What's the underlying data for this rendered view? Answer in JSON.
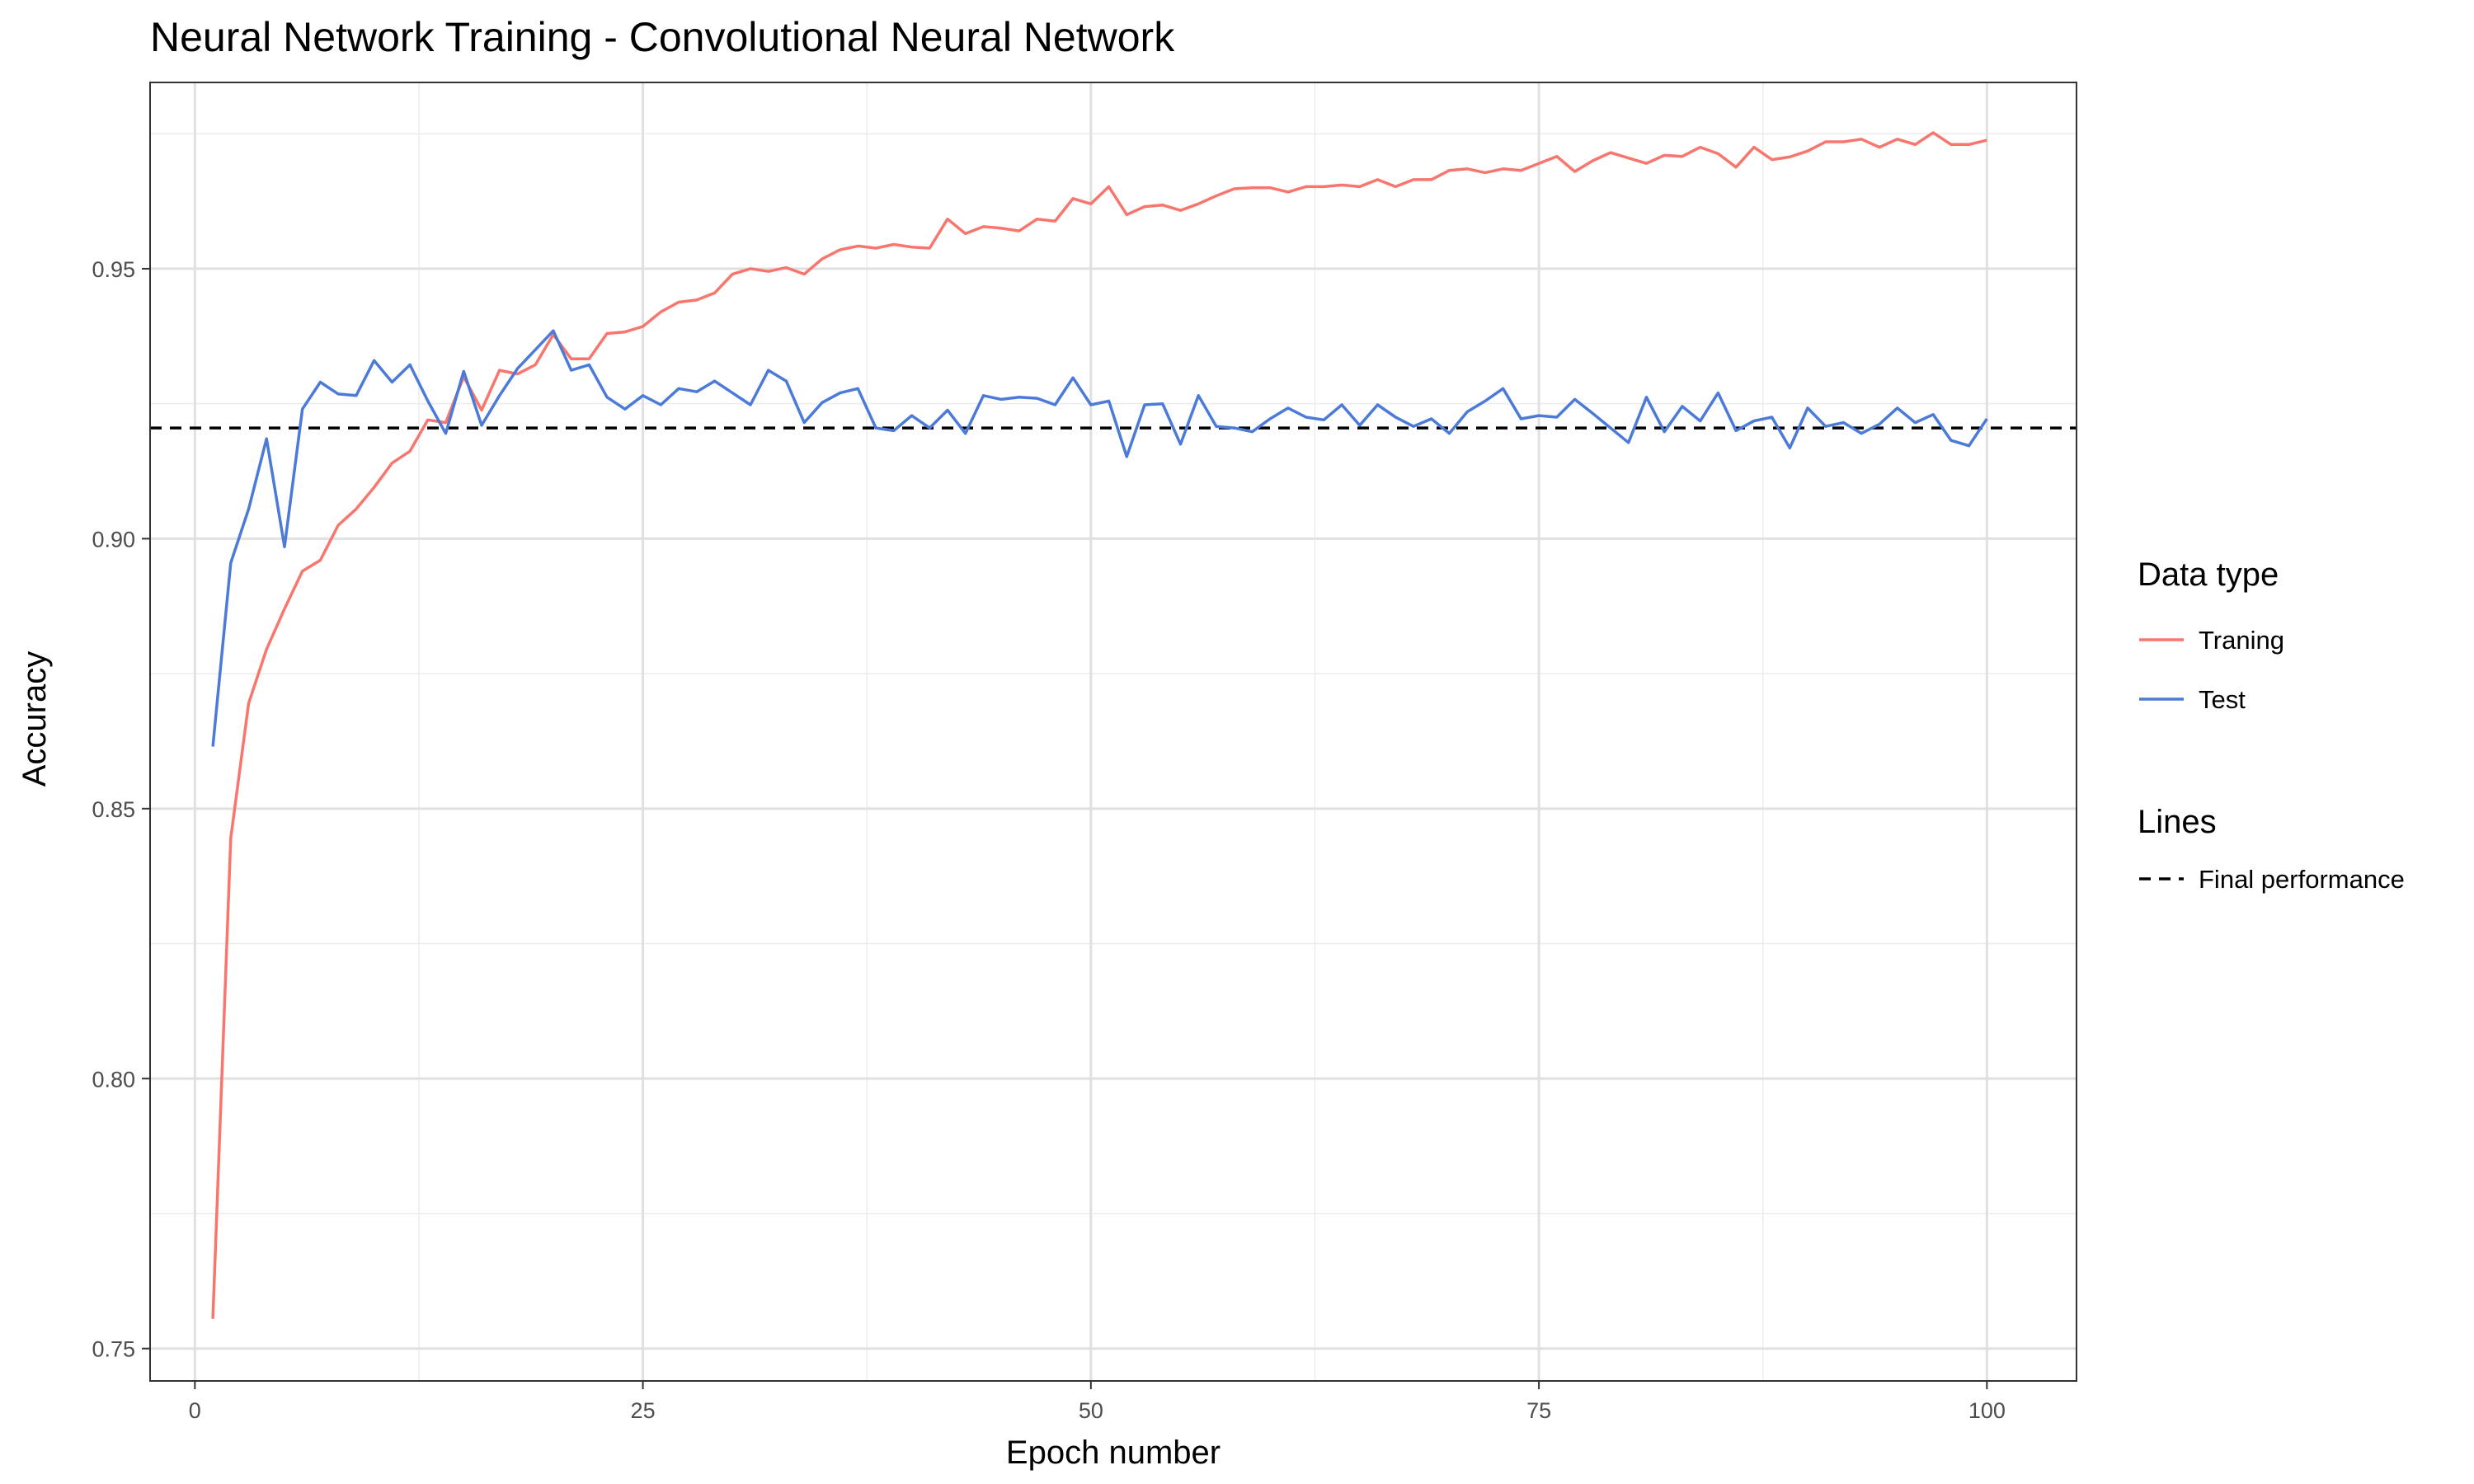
{
  "chart_data": {
    "type": "line",
    "title": "Neural Network Training - Convolutional Neural Network",
    "xlabel": "Epoch number",
    "ylabel": "Accuracy",
    "xlim": [
      -2.5,
      105
    ],
    "ylim": [
      0.744,
      0.9845
    ],
    "x_ticks": [
      0,
      25,
      50,
      75,
      100
    ],
    "x_tick_labels": [
      "0",
      "25",
      "50",
      "75",
      "100"
    ],
    "y_ticks": [
      0.75,
      0.8,
      0.85,
      0.9,
      0.95
    ],
    "y_tick_labels": [
      "0.75",
      "0.80",
      "0.85",
      "0.90",
      "0.95"
    ],
    "grid": true,
    "legend_position": "right",
    "legend_groups": [
      {
        "title": "Data type",
        "entries": [
          "Traning",
          "Test"
        ]
      },
      {
        "title": "Lines",
        "entries": [
          "Final performance"
        ]
      }
    ],
    "series": [
      {
        "name": "Traning",
        "color": "#f8766d",
        "x": [
          1,
          2,
          3,
          4,
          5,
          6,
          7,
          8,
          9,
          10,
          11,
          12,
          13,
          14,
          15,
          16,
          17,
          18,
          19,
          20,
          21,
          22,
          23,
          24,
          25,
          26,
          27,
          28,
          29,
          30,
          31,
          32,
          33,
          34,
          35,
          36,
          37,
          38,
          39,
          40,
          41,
          42,
          43,
          44,
          45,
          46,
          47,
          48,
          49,
          50,
          51,
          52,
          53,
          54,
          55,
          56,
          57,
          58,
          59,
          60,
          61,
          62,
          63,
          64,
          65,
          66,
          67,
          68,
          69,
          70,
          71,
          72,
          73,
          74,
          75,
          76,
          77,
          78,
          79,
          80,
          81,
          82,
          83,
          84,
          85,
          86,
          87,
          88,
          89,
          90,
          91,
          92,
          93,
          94,
          95,
          96,
          97,
          98,
          99,
          100
        ],
        "y": [
          0.7555,
          0.8445,
          0.8695,
          0.8795,
          0.887,
          0.894,
          0.896,
          0.9025,
          0.9055,
          0.9095,
          0.914,
          0.9162,
          0.922,
          0.9215,
          0.93,
          0.9238,
          0.9312,
          0.9305,
          0.9322,
          0.9378,
          0.9333,
          0.9333,
          0.938,
          0.9383,
          0.9393,
          0.942,
          0.9438,
          0.9442,
          0.9455,
          0.949,
          0.95,
          0.9495,
          0.9502,
          0.949,
          0.9518,
          0.9535,
          0.9542,
          0.9538,
          0.9545,
          0.954,
          0.9538,
          0.9592,
          0.9565,
          0.9578,
          0.9575,
          0.957,
          0.9592,
          0.9588,
          0.963,
          0.962,
          0.9652,
          0.96,
          0.9615,
          0.9618,
          0.9608,
          0.962,
          0.9635,
          0.9648,
          0.965,
          0.965,
          0.9642,
          0.9652,
          0.9652,
          0.9655,
          0.9652,
          0.9665,
          0.9652,
          0.9665,
          0.9665,
          0.9682,
          0.9685,
          0.9678,
          0.9685,
          0.9682,
          0.9695,
          0.9708,
          0.968,
          0.97,
          0.9715,
          0.9705,
          0.9695,
          0.971,
          0.9708,
          0.9725,
          0.9713,
          0.9688,
          0.9725,
          0.9702,
          0.9707,
          0.9718,
          0.9735,
          0.9735,
          0.974,
          0.9725,
          0.974,
          0.973,
          0.9752,
          0.973,
          0.973,
          0.9738
        ]
      },
      {
        "name": "Test",
        "color": "#4b7ad8",
        "x": [
          1,
          2,
          3,
          4,
          5,
          6,
          7,
          8,
          9,
          10,
          11,
          12,
          13,
          14,
          15,
          16,
          17,
          18,
          19,
          20,
          21,
          22,
          23,
          24,
          25,
          26,
          27,
          28,
          29,
          30,
          31,
          32,
          33,
          34,
          35,
          36,
          37,
          38,
          39,
          40,
          41,
          42,
          43,
          44,
          45,
          46,
          47,
          48,
          49,
          50,
          51,
          52,
          53,
          54,
          55,
          56,
          57,
          58,
          59,
          60,
          61,
          62,
          63,
          64,
          65,
          66,
          67,
          68,
          69,
          70,
          71,
          72,
          73,
          74,
          75,
          76,
          77,
          78,
          79,
          80,
          81,
          82,
          83,
          84,
          85,
          86,
          87,
          88,
          89,
          90,
          91,
          92,
          93,
          94,
          95,
          96,
          97,
          98,
          99,
          100
        ],
        "y": [
          0.8615,
          0.8955,
          0.9055,
          0.9185,
          0.8985,
          0.924,
          0.929,
          0.9268,
          0.9265,
          0.933,
          0.929,
          0.9322,
          0.9255,
          0.9195,
          0.931,
          0.921,
          0.9265,
          0.9315,
          0.935,
          0.9385,
          0.9312,
          0.9322,
          0.9262,
          0.924,
          0.9265,
          0.9248,
          0.9278,
          0.9272,
          0.9292,
          0.927,
          0.9248,
          0.9312,
          0.9292,
          0.9215,
          0.9252,
          0.927,
          0.9278,
          0.9205,
          0.92,
          0.9228,
          0.9205,
          0.9238,
          0.9195,
          0.9265,
          0.9258,
          0.9262,
          0.926,
          0.9248,
          0.9298,
          0.9248,
          0.9255,
          0.9152,
          0.9248,
          0.925,
          0.9175,
          0.9265,
          0.9208,
          0.9205,
          0.9198,
          0.9222,
          0.9242,
          0.9225,
          0.922,
          0.9248,
          0.921,
          0.9248,
          0.9225,
          0.9208,
          0.9222,
          0.9195,
          0.9235,
          0.9255,
          0.9278,
          0.9222,
          0.9228,
          0.9225,
          0.9258,
          0.9232,
          0.9205,
          0.9178,
          0.9262,
          0.9198,
          0.9245,
          0.9218,
          0.927,
          0.92,
          0.9218,
          0.9225,
          0.9168,
          0.9242,
          0.9208,
          0.9215,
          0.9195,
          0.9212,
          0.9242,
          0.9215,
          0.923,
          0.9182,
          0.9172,
          0.9222
        ]
      }
    ],
    "reference_lines": [
      {
        "name": "Final performance",
        "y": 0.9205,
        "style": "dashed",
        "color": "#000000"
      }
    ]
  }
}
